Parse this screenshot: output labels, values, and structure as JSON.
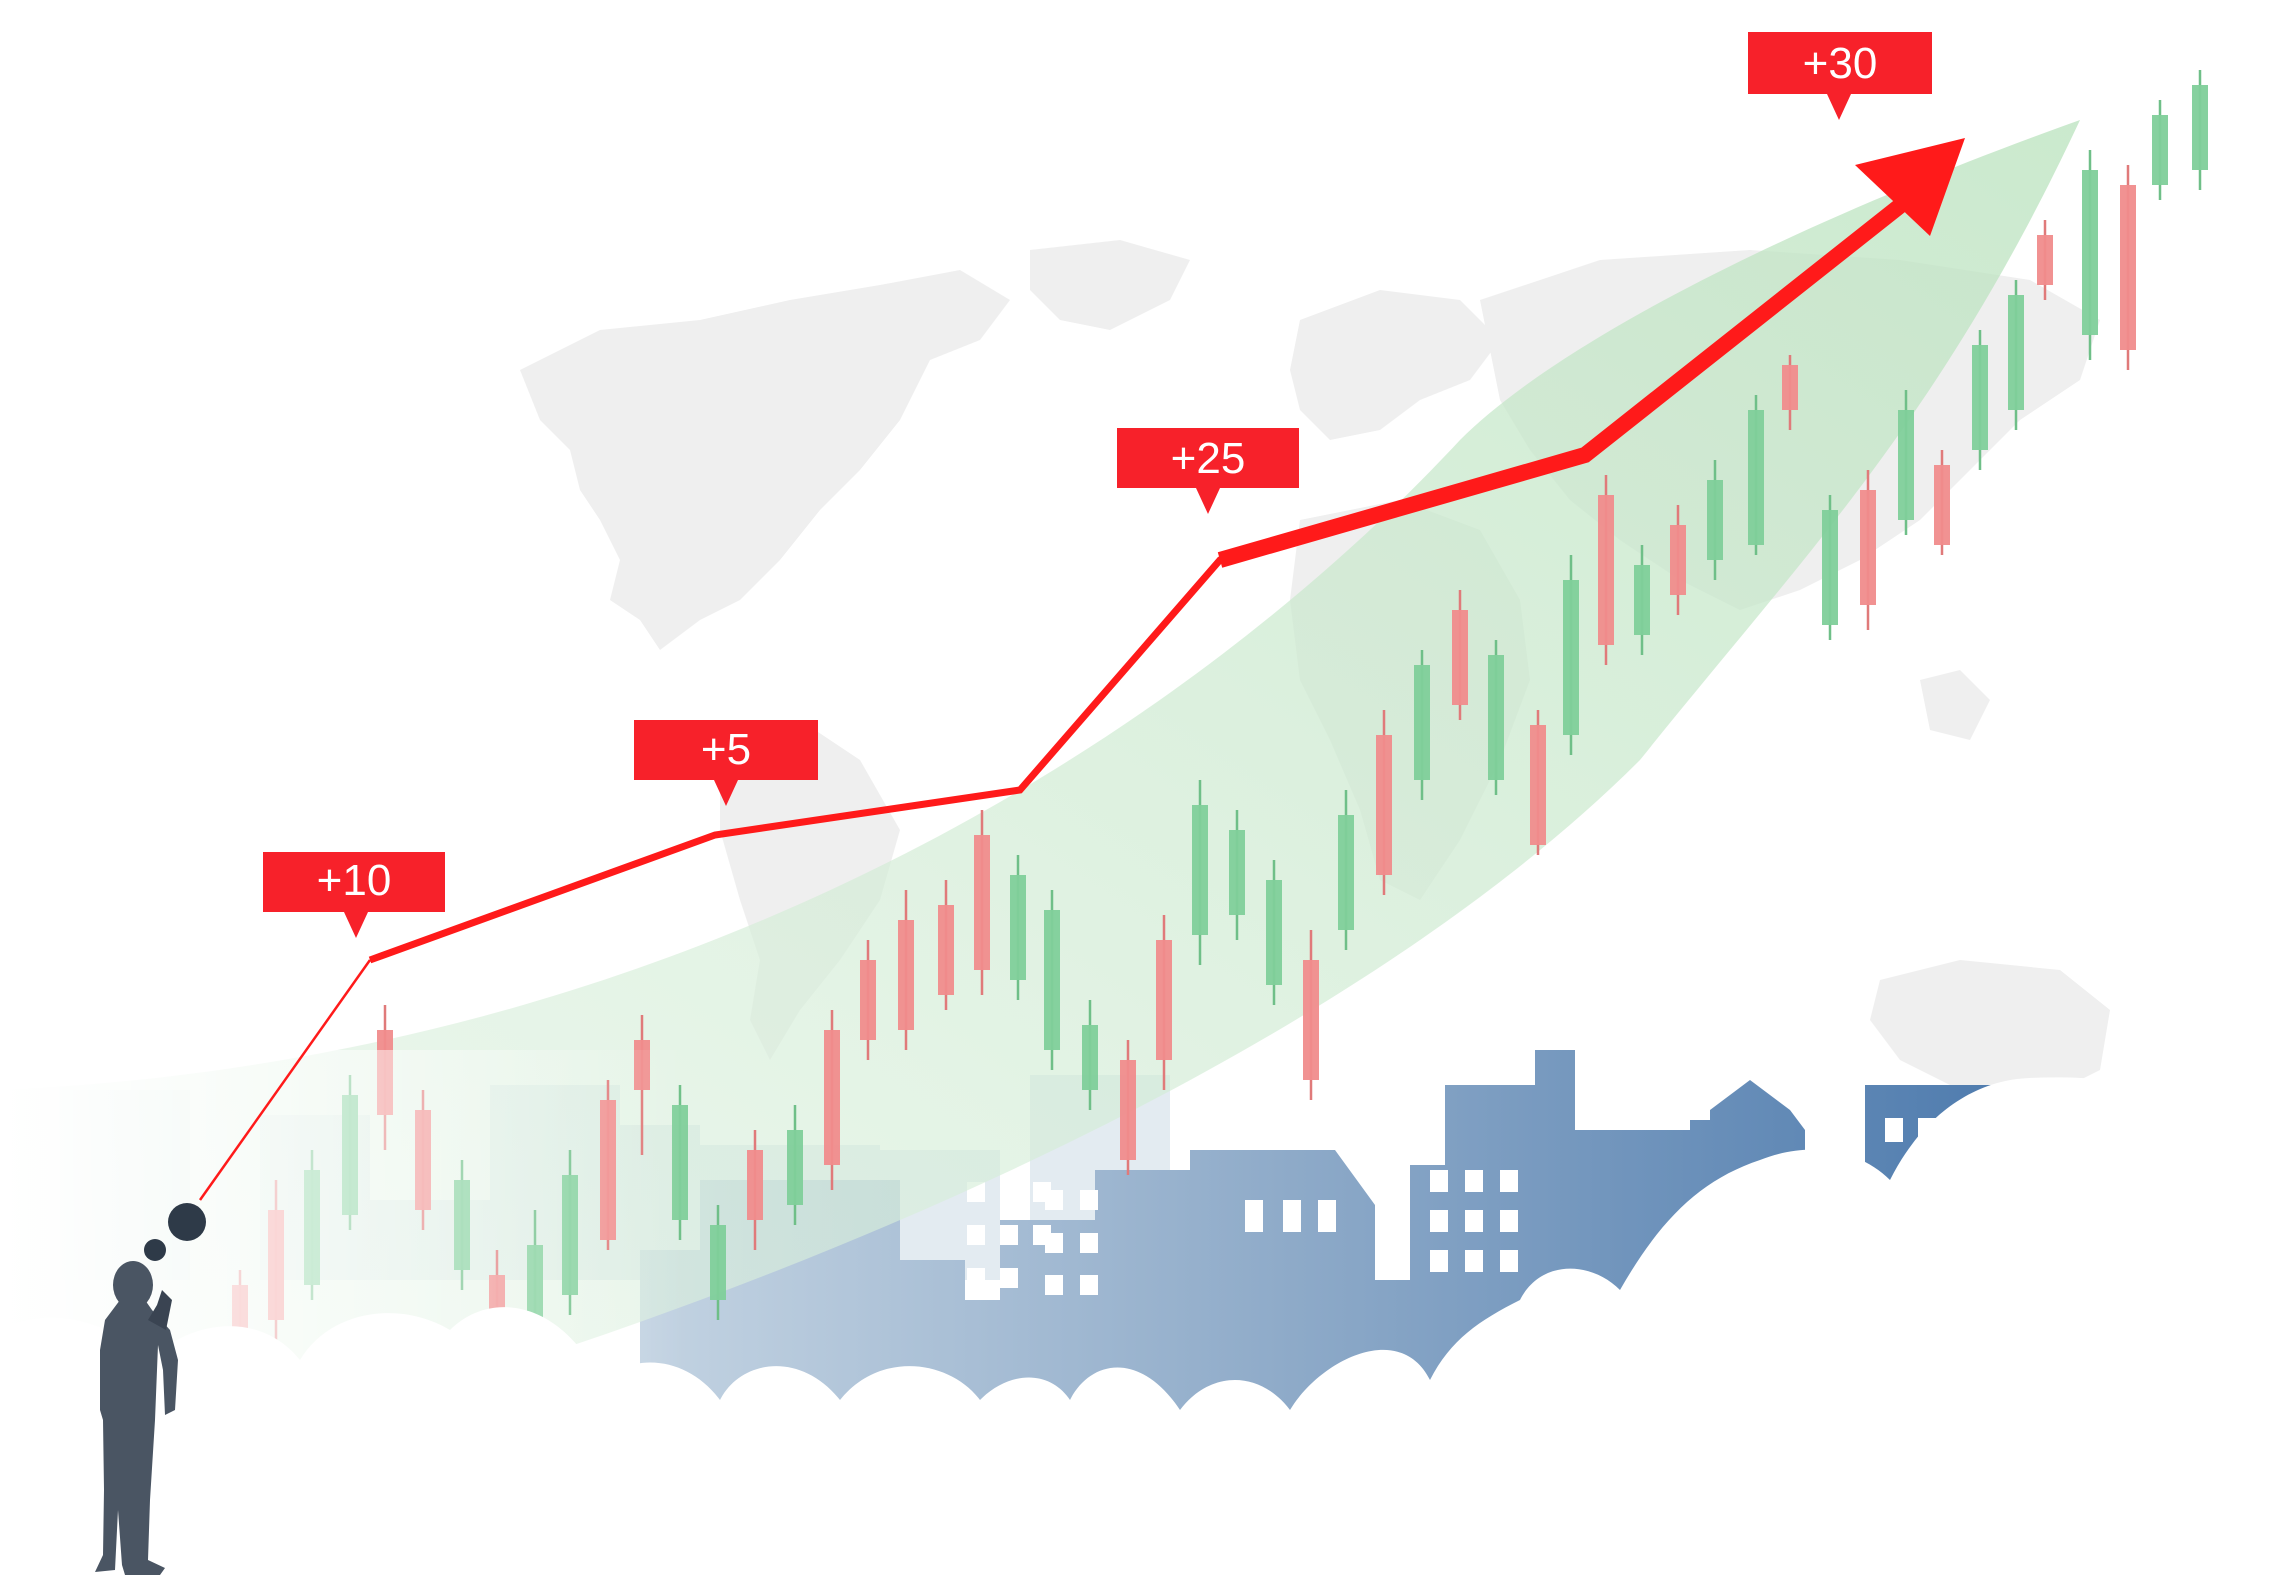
{
  "colors": {
    "background": "#ffffff",
    "map": "#efefef",
    "trend_red": "#ff1a1a",
    "badge_red": "#f7212a",
    "candle_up": "#7fcf9a",
    "candle_down": "#f08c8c",
    "wick": "#e07a7a",
    "band_green": "#cfeccf",
    "city_blue": "#5b87b8",
    "city_light": "#c9d6e2",
    "person": "#4a5563"
  },
  "badges": [
    {
      "label": "+10"
    },
    {
      "label": "+5"
    },
    {
      "label": "+25"
    },
    {
      "label": "+30"
    }
  ],
  "icons": {
    "person": "thinking-businessman-icon",
    "thought": "thought-bubble-icon",
    "arrow": "arrow-head-icon",
    "map": "world-map-icon",
    "city": "city-skyline-icon",
    "cloud": "cloud-icon"
  }
}
